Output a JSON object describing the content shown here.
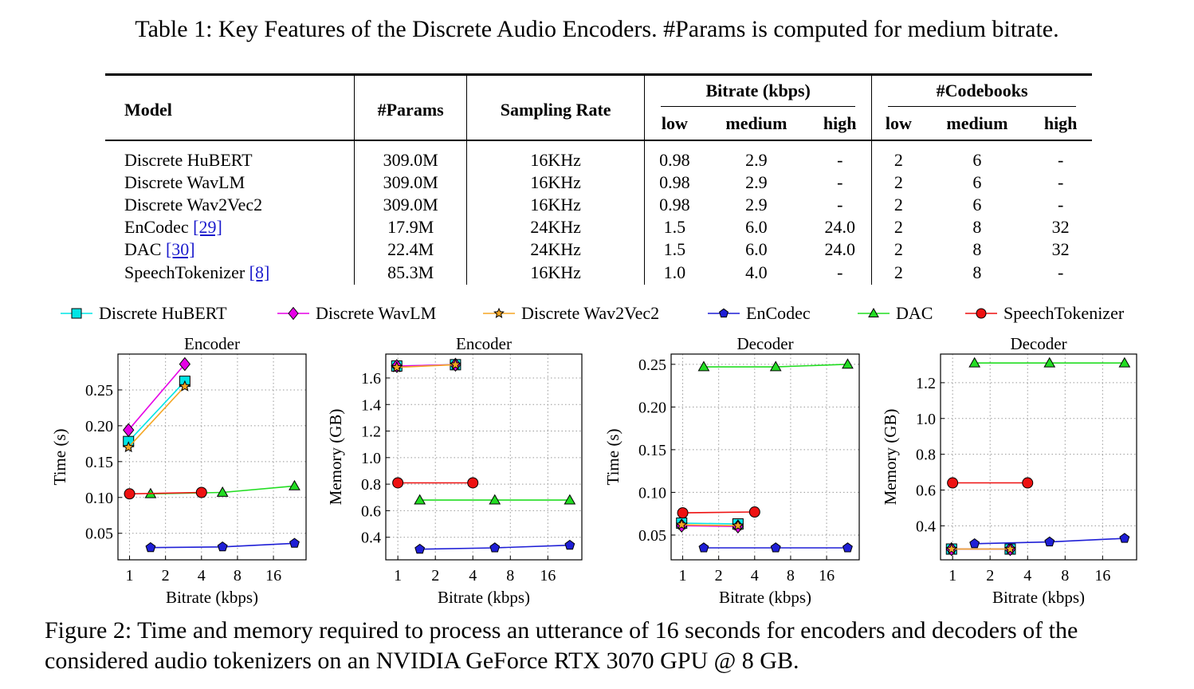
{
  "table": {
    "caption": "Table 1: Key Features of the Discrete Audio Encoders. #Params is computed for medium bitrate.",
    "headers": {
      "model": "Model",
      "params": "#Params",
      "sampling_rate": "Sampling Rate",
      "bitrate_group": "Bitrate (kbps)",
      "codebooks_group": "#Codebooks",
      "low": "low",
      "medium": "medium",
      "high": "high"
    },
    "rows": [
      {
        "model": "Discrete HuBERT",
        "cite": "",
        "params": "309.0M",
        "sr": "16KHz",
        "b_low": "0.98",
        "b_med": "2.9",
        "b_high": "-",
        "c_low": "2",
        "c_med": "6",
        "c_high": "-"
      },
      {
        "model": "Discrete WavLM",
        "cite": "",
        "params": "309.0M",
        "sr": "16KHz",
        "b_low": "0.98",
        "b_med": "2.9",
        "b_high": "-",
        "c_low": "2",
        "c_med": "6",
        "c_high": "-"
      },
      {
        "model": "Discrete Wav2Vec2",
        "cite": "",
        "params": "309.0M",
        "sr": "16KHz",
        "b_low": "0.98",
        "b_med": "2.9",
        "b_high": "-",
        "c_low": "2",
        "c_med": "6",
        "c_high": "-"
      },
      {
        "model": "EnCodec",
        "cite": "[29]",
        "params": "17.9M",
        "sr": "24KHz",
        "b_low": "1.5",
        "b_med": "6.0",
        "b_high": "24.0",
        "c_low": "2",
        "c_med": "8",
        "c_high": "32"
      },
      {
        "model": "DAC",
        "cite": "[30]",
        "params": "22.4M",
        "sr": "24KHz",
        "b_low": "1.5",
        "b_med": "6.0",
        "b_high": "24.0",
        "c_low": "2",
        "c_med": "8",
        "c_high": "32"
      },
      {
        "model": "SpeechTokenizer",
        "cite": "[8]",
        "params": "85.3M",
        "sr": "16KHz",
        "b_low": "1.0",
        "b_med": "4.0",
        "b_high": "-",
        "c_low": "2",
        "c_med": "8",
        "c_high": "-"
      }
    ]
  },
  "legend": [
    {
      "name": "Discrete HuBERT",
      "color": "#00e5e5",
      "marker": "square"
    },
    {
      "name": "Discrete WavLM",
      "color": "#e600e6",
      "marker": "diamond"
    },
    {
      "name": "Discrete Wav2Vec2",
      "color": "#f5a623",
      "marker": "star"
    },
    {
      "name": "EnCodec",
      "color": "#1f1fd6",
      "marker": "pentagon"
    },
    {
      "name": "DAC",
      "color": "#22dd22",
      "marker": "triangle"
    },
    {
      "name": "SpeechTokenizer",
      "color": "#ee1111",
      "marker": "circle"
    }
  ],
  "chart_data": [
    {
      "type": "line",
      "title": "Encoder",
      "xlabel": "Bitrate (kbps)",
      "ylabel": "Time (s)",
      "x_scale": "log2",
      "xlim": [
        0.8,
        30
      ],
      "ylim": [
        0.013,
        0.3
      ],
      "xticks": [
        "1",
        "2",
        "4",
        "8",
        "16"
      ],
      "yticks": [
        "0.05",
        "0.10",
        "0.15",
        "0.20",
        "0.25"
      ],
      "series": [
        {
          "name": "Discrete HuBERT",
          "x": [
            0.98,
            2.9
          ],
          "y": [
            0.178,
            0.262
          ]
        },
        {
          "name": "Discrete WavLM",
          "x": [
            0.98,
            2.9
          ],
          "y": [
            0.194,
            0.286
          ]
        },
        {
          "name": "Discrete Wav2Vec2",
          "x": [
            0.98,
            2.9
          ],
          "y": [
            0.17,
            0.255
          ]
        },
        {
          "name": "EnCodec",
          "x": [
            1.5,
            6.0,
            24.0
          ],
          "y": [
            0.03,
            0.031,
            0.036
          ]
        },
        {
          "name": "DAC",
          "x": [
            1.5,
            6.0,
            24.0
          ],
          "y": [
            0.105,
            0.107,
            0.116
          ]
        },
        {
          "name": "SpeechTokenizer",
          "x": [
            1.0,
            4.0
          ],
          "y": [
            0.105,
            0.107
          ]
        }
      ]
    },
    {
      "type": "line",
      "title": "Encoder",
      "xlabel": "Bitrate (kbps)",
      "ylabel": "Memory (GB)",
      "x_scale": "log2",
      "xlim": [
        0.8,
        30
      ],
      "ylim": [
        0.23,
        1.78
      ],
      "xticks": [
        "1",
        "2",
        "4",
        "8",
        "16"
      ],
      "yticks": [
        "0.4",
        "0.6",
        "0.8",
        "1.0",
        "1.2",
        "1.4",
        "1.6"
      ],
      "series": [
        {
          "name": "Discrete HuBERT",
          "x": [
            0.98,
            2.9
          ],
          "y": [
            1.69,
            1.7
          ]
        },
        {
          "name": "Discrete WavLM",
          "x": [
            0.98,
            2.9
          ],
          "y": [
            1.69,
            1.7
          ]
        },
        {
          "name": "Discrete Wav2Vec2",
          "x": [
            0.98,
            2.9
          ],
          "y": [
            1.68,
            1.7
          ]
        },
        {
          "name": "EnCodec",
          "x": [
            1.5,
            6.0,
            24.0
          ],
          "y": [
            0.31,
            0.32,
            0.34
          ]
        },
        {
          "name": "DAC",
          "x": [
            1.5,
            6.0,
            24.0
          ],
          "y": [
            0.68,
            0.68,
            0.68
          ]
        },
        {
          "name": "SpeechTokenizer",
          "x": [
            1.0,
            4.0
          ],
          "y": [
            0.81,
            0.81
          ]
        }
      ]
    },
    {
      "type": "line",
      "title": "Decoder",
      "xlabel": "Bitrate (kbps)",
      "ylabel": "Time (s)",
      "x_scale": "log2",
      "xlim": [
        0.8,
        30
      ],
      "ylim": [
        0.021,
        0.262
      ],
      "xticks": [
        "1",
        "2",
        "4",
        "8",
        "16"
      ],
      "yticks": [
        "0.05",
        "0.10",
        "0.15",
        "0.20",
        "0.25"
      ],
      "series": [
        {
          "name": "Discrete HuBERT",
          "x": [
            0.98,
            2.9
          ],
          "y": [
            0.064,
            0.063
          ]
        },
        {
          "name": "Discrete WavLM",
          "x": [
            0.98,
            2.9
          ],
          "y": [
            0.061,
            0.06
          ]
        },
        {
          "name": "Discrete Wav2Vec2",
          "x": [
            0.98,
            2.9
          ],
          "y": [
            0.062,
            0.061
          ]
        },
        {
          "name": "EnCodec",
          "x": [
            1.5,
            6.0,
            24.0
          ],
          "y": [
            0.035,
            0.035,
            0.035
          ]
        },
        {
          "name": "DAC",
          "x": [
            1.5,
            6.0,
            24.0
          ],
          "y": [
            0.247,
            0.247,
            0.25
          ]
        },
        {
          "name": "SpeechTokenizer",
          "x": [
            1.0,
            4.0
          ],
          "y": [
            0.076,
            0.077
          ]
        }
      ]
    },
    {
      "type": "line",
      "title": "Decoder",
      "xlabel": "Bitrate (kbps)",
      "ylabel": "Memory (GB)",
      "x_scale": "log2",
      "xlim": [
        0.8,
        30
      ],
      "ylim": [
        0.21,
        1.36
      ],
      "xticks": [
        "1",
        "2",
        "4",
        "8",
        "16"
      ],
      "yticks": [
        "0.4",
        "0.6",
        "0.8",
        "1.0",
        "1.2"
      ],
      "series": [
        {
          "name": "Discrete HuBERT",
          "x": [
            0.98,
            2.9
          ],
          "y": [
            0.27,
            0.27
          ]
        },
        {
          "name": "Discrete WavLM",
          "x": [
            0.98,
            2.9
          ],
          "y": [
            0.27,
            0.27
          ]
        },
        {
          "name": "Discrete Wav2Vec2",
          "x": [
            0.98,
            2.9
          ],
          "y": [
            0.27,
            0.27
          ]
        },
        {
          "name": "EnCodec",
          "x": [
            1.5,
            6.0,
            24.0
          ],
          "y": [
            0.3,
            0.31,
            0.33
          ]
        },
        {
          "name": "DAC",
          "x": [
            1.5,
            6.0,
            24.0
          ],
          "y": [
            1.31,
            1.31,
            1.31
          ]
        },
        {
          "name": "SpeechTokenizer",
          "x": [
            1.0,
            4.0
          ],
          "y": [
            0.64,
            0.64
          ]
        }
      ]
    }
  ],
  "figure_caption": "Figure 2: Time and memory required to process an utterance of 16 seconds for encoders and decoders of the considered audio tokenizers on an NVIDIA GeForce RTX 3070 GPU @ 8 GB."
}
